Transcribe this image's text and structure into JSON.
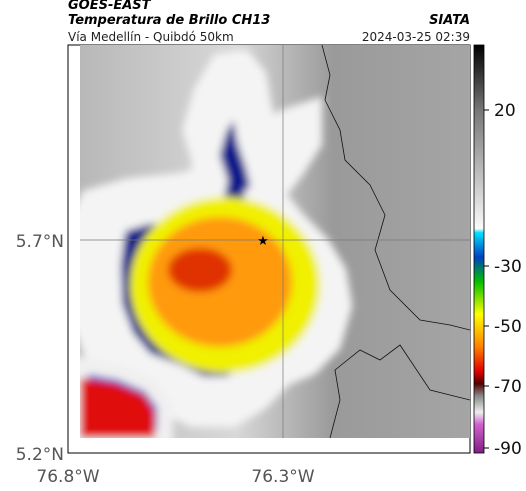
{
  "header": {
    "satellite": "GOES-EAST",
    "product": "Temperatura de Brillo CH13",
    "source": "SIATA",
    "location": "Vía Medellín - Quibdó 50km",
    "datetime": "2024-03-25 02:39"
  },
  "map": {
    "lat_labels": [
      "5.7°N",
      "5.2°N"
    ],
    "lon_labels": [
      "76.8°W",
      "76.3°W"
    ]
  },
  "colorbar": {
    "labels": [
      "20",
      "-30",
      "-50",
      "-70",
      "-90"
    ]
  }
}
